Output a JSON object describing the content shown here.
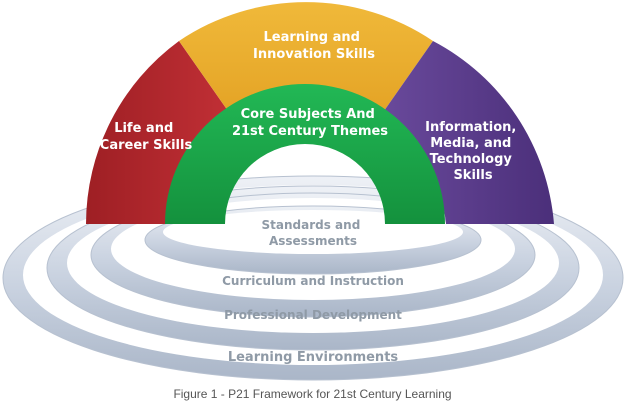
{
  "diagram": {
    "arch_segments": [
      {
        "id": "life",
        "lines": [
          "Life and",
          "Career Skills"
        ],
        "color": "#b8282e"
      },
      {
        "id": "learning",
        "lines": [
          "Learning and",
          "Innovation Skills"
        ],
        "color": "#e8ad2d"
      },
      {
        "id": "info",
        "lines": [
          "Information,",
          "Media, and",
          "Technology",
          "Skills"
        ],
        "color": "#5a3c8c"
      }
    ],
    "core": {
      "lines": [
        "Core Subjects And",
        "21st Century Themes"
      ],
      "color": "#1aa84a"
    },
    "support_rings": [
      {
        "label": "Standards and",
        "label2": "Assessments"
      },
      {
        "label": "Curriculum and Instruction"
      },
      {
        "label": "Professional Development"
      },
      {
        "label": "Learning Environments"
      }
    ]
  },
  "caption": "Figure 1 - P21 Framework for 21st Century Learning"
}
